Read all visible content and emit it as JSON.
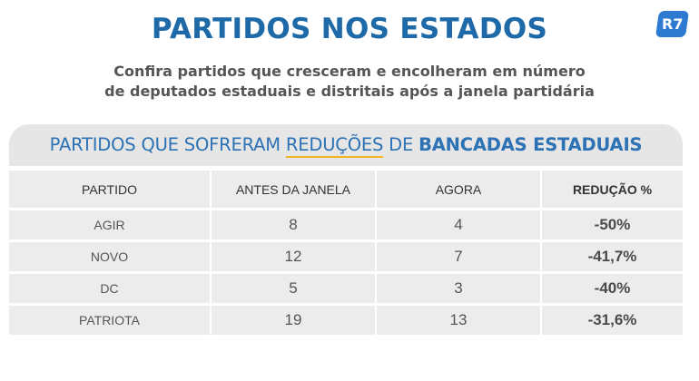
{
  "header": {
    "title": "PARTIDOS NOS ESTADOS",
    "logo": "R7",
    "subtitle_line1": "Confira partidos que cresceram e encolheram em número",
    "subtitle_line2": "de deputados estaduais e distritais após a janela partidária"
  },
  "banner": {
    "part1": "PARTIDOS QUE SOFRERAM ",
    "underlined": "REDUÇÕES",
    "part2": " DE ",
    "bold": "BANCADAS ESTADUAIS"
  },
  "table": {
    "columns": [
      "PARTIDO",
      "ANTES DA JANELA",
      "AGORA",
      "REDUÇÃO %"
    ],
    "rows": [
      {
        "partido": "AGIR",
        "antes": "8",
        "agora": "4",
        "reducao": "-50%"
      },
      {
        "partido": "NOVO",
        "antes": "12",
        "agora": "7",
        "reducao": "-41,7%"
      },
      {
        "partido": "DC",
        "antes": "5",
        "agora": "3",
        "reducao": "-40%"
      },
      {
        "partido": "PATRIOTA",
        "antes": "19",
        "agora": "13",
        "reducao": "-31,6%"
      }
    ]
  },
  "colors": {
    "title_blue": "#1e6aa8",
    "banner_blue": "#2c72b5",
    "underline_yellow": "#f2b423",
    "logo_blue": "#2f7ad1"
  }
}
